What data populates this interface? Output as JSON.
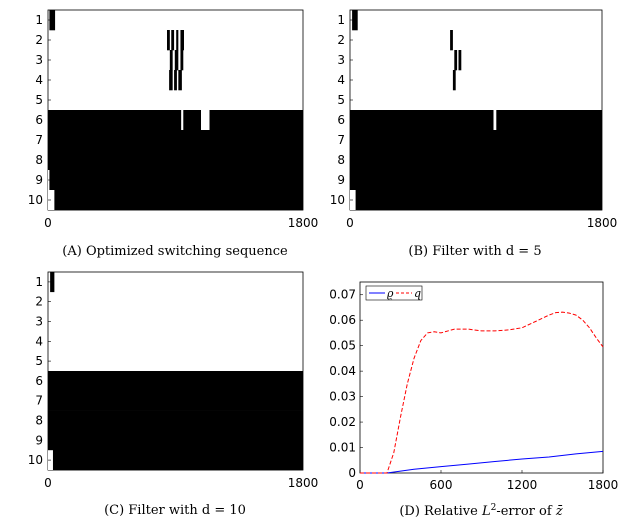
{
  "chart_data": [
    {
      "type": "heatmap",
      "panel": "A",
      "caption": "(A) Optimized switching sequence",
      "xlabel": "",
      "ylabel": "",
      "x_ticks": [
        "0",
        "1800"
      ],
      "y_ticks": [
        "1",
        "2",
        "3",
        "4",
        "5",
        "6",
        "7",
        "8",
        "9",
        "10"
      ],
      "xlim": [
        0,
        1800
      ],
      "rows": [
        [
          [
            10,
            50
          ]
        ],
        [
          [
            840,
            860
          ],
          [
            870,
            890
          ],
          [
            905,
            920
          ],
          [
            935,
            960
          ]
        ],
        [
          [
            860,
            880
          ],
          [
            895,
            920
          ],
          [
            935,
            955
          ]
        ],
        [
          [
            855,
            880
          ],
          [
            890,
            910
          ],
          [
            920,
            945
          ]
        ],
        [],
        [
          [
            0,
            1800
          ]
        ],
        [
          [
            0,
            1800
          ]
        ],
        [
          [
            0,
            1800
          ]
        ],
        [
          [
            0,
            1800
          ]
        ],
        [
          [
            0,
            1800
          ]
        ]
      ],
      "white_gaps": [
        {
          "row": 6,
          "ranges": [
            [
              940,
              955
            ],
            [
              1080,
              1140
            ]
          ]
        },
        {
          "row": 9,
          "ranges": [
            [
              0,
              10
            ]
          ]
        },
        {
          "row": 10,
          "ranges": [
            [
              0,
              45
            ]
          ]
        }
      ]
    },
    {
      "type": "heatmap",
      "panel": "B",
      "caption": "(B) Filter with d = 5",
      "x_ticks": [
        "0",
        "1800"
      ],
      "y_ticks": [
        "1",
        "2",
        "3",
        "4",
        "5",
        "6",
        "7",
        "8",
        "9",
        "10"
      ],
      "xlim": [
        0,
        1800
      ],
      "rows": [
        [
          [
            15,
            55
          ]
        ],
        [
          [
            715,
            735
          ]
        ],
        [
          [
            745,
            765
          ],
          [
            775,
            795
          ]
        ],
        [
          [
            735,
            755
          ]
        ],
        [],
        [
          [
            0,
            1800
          ]
        ],
        [
          [
            0,
            1800
          ]
        ],
        [
          [
            0,
            1800
          ]
        ],
        [
          [
            0,
            1800
          ]
        ],
        [
          [
            0,
            1800
          ]
        ]
      ],
      "white_gaps": [
        {
          "row": 6,
          "ranges": [
            [
              1025,
              1045
            ]
          ]
        },
        {
          "row": 10,
          "ranges": [
            [
              0,
              40
            ]
          ]
        }
      ]
    },
    {
      "type": "heatmap",
      "panel": "C",
      "caption": "(C) Filter with d = 10",
      "x_ticks": [
        "0",
        "1800"
      ],
      "y_ticks": [
        "1",
        "2",
        "3",
        "4",
        "5",
        "6",
        "7",
        "8",
        "9",
        "10"
      ],
      "xlim": [
        0,
        1800
      ],
      "rows": [
        [
          [
            15,
            45
          ]
        ],
        [],
        [],
        [],
        [],
        [
          [
            0,
            1800
          ]
        ],
        [
          [
            0,
            1800
          ]
        ],
        [
          [
            0,
            1800
          ]
        ],
        [
          [
            0,
            1800
          ]
        ],
        [
          [
            0,
            1800
          ]
        ]
      ],
      "white_gaps": [
        {
          "row": 10,
          "ranges": [
            [
              0,
              35
            ]
          ]
        }
      ]
    },
    {
      "type": "line",
      "panel": "D",
      "caption_prefix": "(D) Relative ",
      "caption_l": "L",
      "caption_sup": "2",
      "caption_mid": "-error of ",
      "caption_var": "z̄",
      "xlim": [
        0,
        1800
      ],
      "ylim": [
        0,
        0.075
      ],
      "x_ticks": [
        "0",
        "600",
        "1200",
        "1800"
      ],
      "y_ticks": [
        "0",
        "0.01",
        "0.02",
        "0.03",
        "0.04",
        "0.05",
        "0.06",
        "0.07"
      ],
      "legend": [
        "ϱ",
        "q"
      ],
      "series": [
        {
          "name": "ϱ",
          "color": "#0000ff",
          "dash": "solid",
          "x": [
            0,
            200,
            400,
            600,
            800,
            1000,
            1200,
            1400,
            1600,
            1800
          ],
          "y": [
            0,
            0,
            0.0015,
            0.0025,
            0.0035,
            0.0045,
            0.0055,
            0.0063,
            0.0075,
            0.0085
          ]
        },
        {
          "name": "q",
          "color": "#ff0000",
          "dash": "dashed",
          "x": [
            0,
            200,
            250,
            300,
            350,
            400,
            450,
            500,
            550,
            600,
            700,
            800,
            900,
            1000,
            1100,
            1200,
            1300,
            1400,
            1450,
            1500,
            1550,
            1600,
            1650,
            1700,
            1750,
            1800
          ],
          "y": [
            0,
            0,
            0.008,
            0.022,
            0.035,
            0.045,
            0.052,
            0.055,
            0.0555,
            0.055,
            0.0565,
            0.0565,
            0.0558,
            0.0558,
            0.0562,
            0.057,
            0.0595,
            0.062,
            0.063,
            0.0632,
            0.0628,
            0.062,
            0.06,
            0.057,
            0.053,
            0.0495
          ]
        }
      ]
    }
  ]
}
